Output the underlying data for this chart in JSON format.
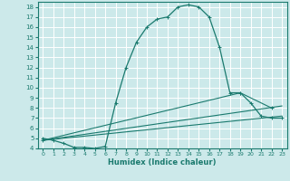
{
  "xlabel": "Humidex (Indice chaleur)",
  "background_color": "#cce9ea",
  "grid_color": "#ffffff",
  "line_color": "#1a7a6e",
  "xlim": [
    -0.5,
    23.5
  ],
  "ylim": [
    4,
    18.5
  ],
  "yticks": [
    4,
    5,
    6,
    7,
    8,
    9,
    10,
    11,
    12,
    13,
    14,
    15,
    16,
    17,
    18
  ],
  "xticks": [
    0,
    1,
    2,
    3,
    4,
    5,
    6,
    7,
    8,
    9,
    10,
    11,
    12,
    13,
    14,
    15,
    16,
    17,
    18,
    19,
    20,
    21,
    22,
    23
  ],
  "series": [
    {
      "x": [
        0,
        1,
        2,
        3,
        4,
        5,
        6,
        7,
        8,
        9,
        10,
        11,
        12,
        13,
        14,
        15,
        16,
        17,
        18,
        19,
        20,
        21,
        22,
        23
      ],
      "y": [
        5,
        4.8,
        4.5,
        4.1,
        4.1,
        4.0,
        4.2,
        8.5,
        12.0,
        14.5,
        16.0,
        16.8,
        17.0,
        18.0,
        18.2,
        18.0,
        17.0,
        14.0,
        9.5,
        9.5,
        8.5,
        7.2,
        7.0,
        7.0
      ],
      "style": "+-",
      "linewidth": 0.9,
      "markersize": 2.5
    },
    {
      "x": [
        0,
        23
      ],
      "y": [
        4.8,
        7.2
      ],
      "style": "-",
      "linewidth": 0.8,
      "markersize": 0
    },
    {
      "x": [
        0,
        23
      ],
      "y": [
        4.8,
        8.2
      ],
      "style": "-",
      "linewidth": 0.8,
      "markersize": 0
    },
    {
      "x": [
        0,
        19,
        22
      ],
      "y": [
        4.8,
        9.5,
        8.0
      ],
      "style": "+-",
      "linewidth": 0.8,
      "markersize": 2.5
    }
  ]
}
